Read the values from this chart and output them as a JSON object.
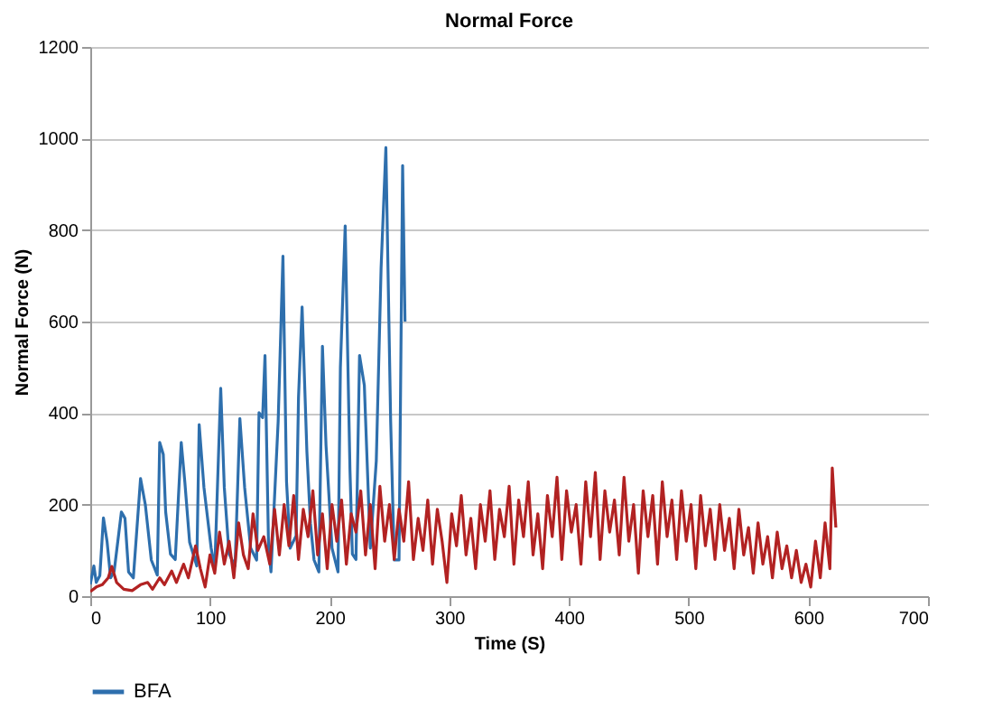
{
  "chart_data": {
    "type": "line",
    "title": "Normal Force",
    "xlabel": "Time (S)",
    "ylabel": "Normal Force (N)",
    "xlim": [
      0,
      700
    ],
    "xticks": [
      0,
      100,
      200,
      300,
      400,
      500,
      600,
      700
    ],
    "ylim": [
      0,
      1200
    ],
    "yticks": [
      0,
      200,
      400,
      600,
      800,
      1000,
      1200
    ],
    "grid": "y",
    "legend": "bottom left",
    "series": [
      {
        "name": "BFA",
        "color": "#2e6fad",
        "x": [
          0,
          3,
          5,
          8,
          11,
          14,
          17,
          20,
          26,
          29,
          32,
          36,
          42,
          46,
          51,
          56,
          58,
          61,
          63,
          67,
          71,
          76,
          79,
          83,
          89,
          91,
          95,
          101,
          104,
          109,
          112,
          116,
          121,
          125,
          129,
          134,
          139,
          141,
          144,
          146,
          149,
          151,
          157,
          161,
          164,
          167,
          172,
          174,
          177,
          181,
          184,
          187,
          191,
          194,
          197,
          202,
          207,
          209,
          213,
          217,
          219,
          222,
          225,
          229,
          234,
          239,
          243,
          247,
          251,
          254,
          258,
          261,
          263
        ],
        "values": [
          26,
          66,
          30,
          45,
          171,
          120,
          40,
          55,
          184,
          170,
          53,
          40,
          257,
          200,
          79,
          46,
          336,
          310,
          184,
          92,
          80,
          336,
          250,
          118,
          66,
          375,
          237,
          105,
          59,
          454,
          237,
          92,
          66,
          388,
          237,
          105,
          79,
          401,
          390,
          526,
          105,
          53,
          382,
          743,
          250,
          105,
          132,
          434,
          632,
          316,
          158,
          79,
          53,
          546,
          329,
          105,
          53,
          500,
          809,
          276,
          92,
          80,
          526,
          461,
          105,
          296,
          717,
          980,
          382,
          79,
          79,
          941,
          600
        ]
      },
      {
        "color": "#b22222",
        "x": [
          0,
          5,
          10,
          15,
          18,
          22,
          28,
          35,
          42,
          48,
          52,
          58,
          62,
          68,
          72,
          78,
          82,
          88,
          92,
          96,
          100,
          104,
          108,
          112,
          116,
          120,
          124,
          128,
          132,
          136,
          140,
          145,
          150,
          154,
          158,
          162,
          166,
          170,
          174,
          178,
          182,
          186,
          190,
          194,
          198,
          202,
          206,
          210,
          214,
          218,
          222,
          226,
          230,
          234,
          238,
          242,
          246,
          250,
          254,
          258,
          262,
          266,
          270,
          274,
          278,
          282,
          286,
          290,
          294,
          298,
          302,
          306,
          310,
          314,
          318,
          322,
          326,
          330,
          334,
          338,
          342,
          346,
          350,
          354,
          358,
          362,
          366,
          370,
          374,
          378,
          382,
          386,
          390,
          394,
          398,
          402,
          406,
          410,
          414,
          418,
          422,
          426,
          430,
          434,
          438,
          442,
          446,
          450,
          454,
          458,
          462,
          466,
          470,
          474,
          478,
          482,
          486,
          490,
          494,
          498,
          502,
          506,
          510,
          514,
          518,
          522,
          526,
          530,
          534,
          538,
          542,
          546,
          550,
          554,
          558,
          562,
          566,
          570,
          574,
          578,
          582,
          586,
          590,
          594,
          598,
          602,
          606,
          610,
          614,
          618,
          620,
          623
        ],
        "values": [
          10,
          20,
          25,
          40,
          65,
          30,
          15,
          12,
          25,
          30,
          15,
          40,
          25,
          55,
          30,
          70,
          40,
          110,
          60,
          20,
          90,
          50,
          140,
          70,
          120,
          40,
          160,
          90,
          60,
          180,
          100,
          130,
          70,
          190,
          90,
          200,
          110,
          220,
          80,
          190,
          130,
          230,
          90,
          180,
          60,
          200,
          120,
          210,
          70,
          180,
          140,
          230,
          90,
          200,
          60,
          240,
          120,
          200,
          80,
          190,
          120,
          250,
          80,
          170,
          100,
          210,
          70,
          190,
          120,
          30,
          180,
          110,
          220,
          90,
          170,
          60,
          200,
          120,
          230,
          80,
          190,
          130,
          240,
          70,
          210,
          130,
          250,
          90,
          180,
          60,
          220,
          130,
          260,
          80,
          230,
          140,
          200,
          70,
          250,
          130,
          270,
          80,
          230,
          140,
          210,
          90,
          260,
          120,
          200,
          50,
          230,
          130,
          220,
          70,
          250,
          130,
          210,
          80,
          230,
          120,
          200,
          60,
          220,
          110,
          190,
          80,
          200,
          100,
          170,
          60,
          190,
          90,
          150,
          50,
          160,
          70,
          130,
          40,
          140,
          60,
          110,
          40,
          100,
          30,
          70,
          20,
          120,
          40,
          160,
          60,
          280,
          150
        ]
      }
    ]
  }
}
